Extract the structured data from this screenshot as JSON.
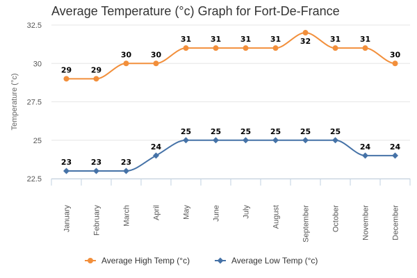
{
  "chart_data": {
    "type": "line",
    "title": "Average Temperature (°c) Graph for Fort-De-France",
    "xlabel": "",
    "ylabel": "Temperature (°c)",
    "categories": [
      "January",
      "February",
      "March",
      "April",
      "May",
      "June",
      "July",
      "August",
      "September",
      "October",
      "November",
      "December"
    ],
    "ylim": [
      22.5,
      32.5
    ],
    "yticks": [
      22.5,
      25,
      27.5,
      30,
      32.5
    ],
    "ytick_labels": [
      "22.5",
      "25",
      "27.5",
      "30",
      "32.5"
    ],
    "grid": true,
    "legend_position": "bottom",
    "series": [
      {
        "name": "Average High Temp (°c)",
        "values": [
          29,
          29,
          30,
          30,
          31,
          31,
          31,
          31,
          32,
          31,
          31,
          30
        ],
        "labels": [
          "29",
          "29",
          "30",
          "30",
          "31",
          "31",
          "31",
          "31",
          "32",
          "31",
          "31",
          "30"
        ],
        "color": "#f28f3b",
        "marker": "circle"
      },
      {
        "name": "Average Low Temp (°c)",
        "values": [
          23,
          23,
          23,
          24,
          25,
          25,
          25,
          25,
          25,
          25,
          24,
          24
        ],
        "labels": [
          "23",
          "23",
          "23",
          "24",
          "25",
          "25",
          "25",
          "25",
          "25",
          "25",
          "24",
          "24"
        ],
        "color": "#4572a7",
        "marker": "diamond"
      }
    ]
  }
}
